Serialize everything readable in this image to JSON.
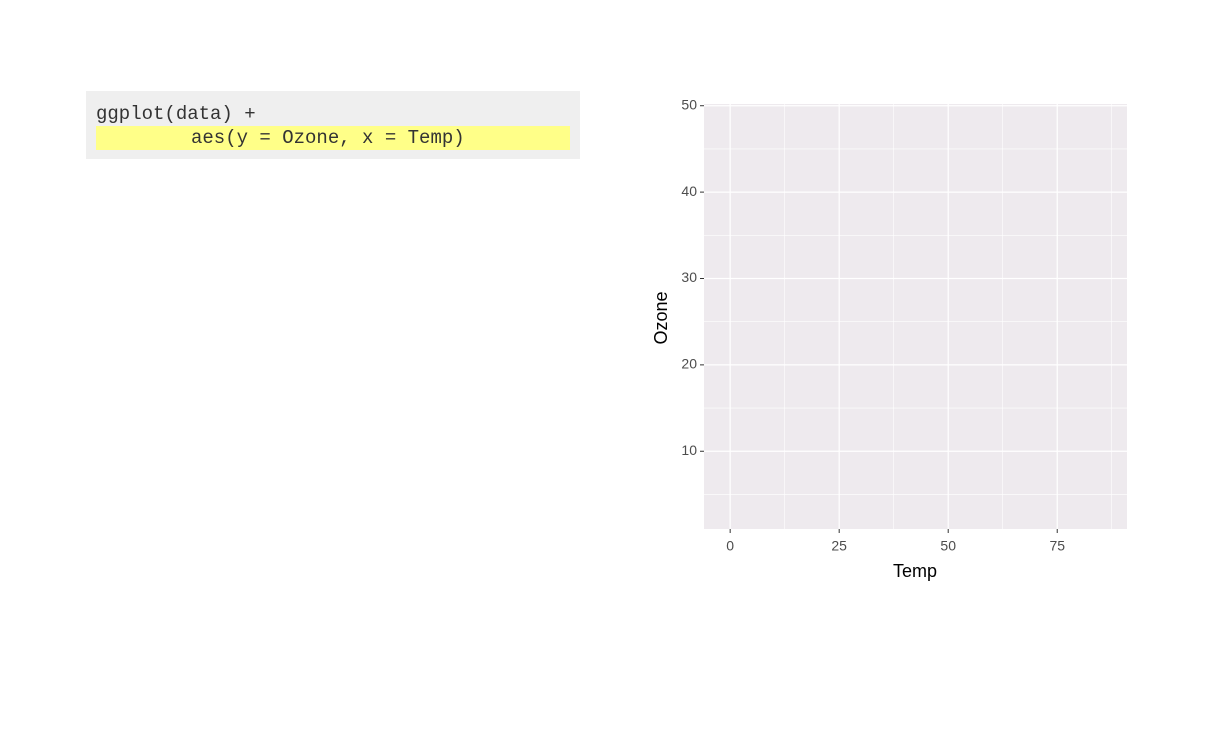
{
  "code": {
    "lines": [
      "ggplot(data) +",
      "aes(y = Ozone, x = Temp)"
    ]
  },
  "chart_data": {
    "type": "scatter",
    "x_label": "Temp",
    "y_label": "Ozone",
    "xlim": [
      -6,
      91
    ],
    "ylim": [
      1,
      50.2
    ],
    "xticks": [
      0,
      25,
      50,
      75
    ],
    "yticks": [
      10,
      20,
      30,
      40,
      50
    ],
    "x_minor_ticks": [
      12.5,
      37.5,
      62.5,
      87.5
    ],
    "y_minor_ticks": [
      5,
      15,
      25,
      35,
      45
    ],
    "grid": true
  }
}
